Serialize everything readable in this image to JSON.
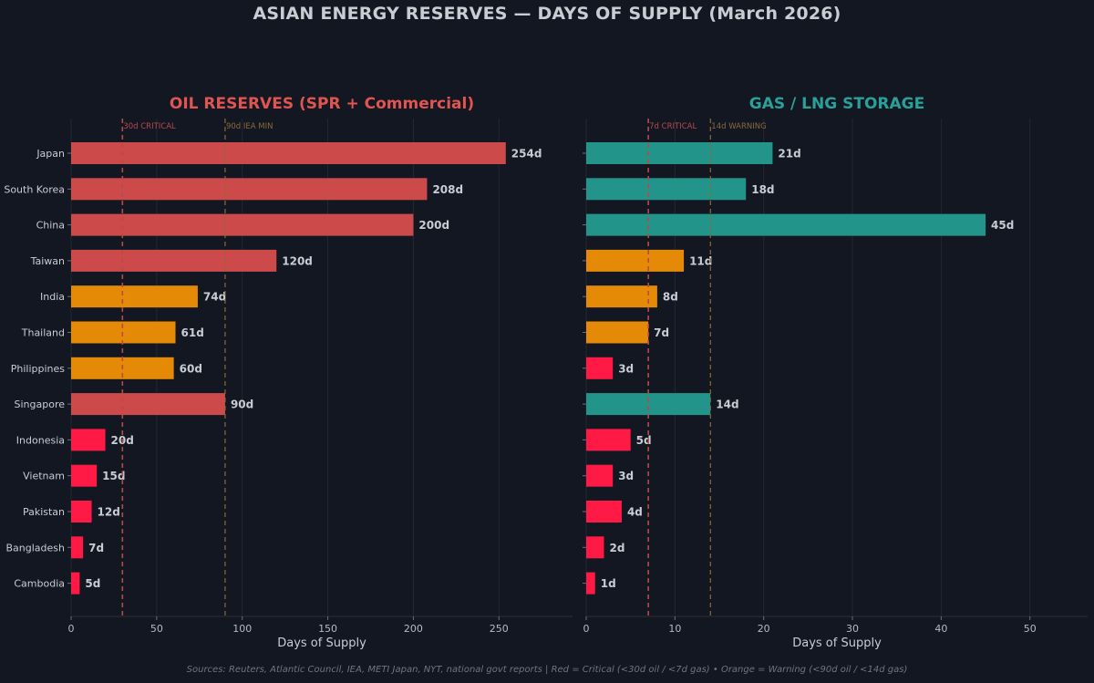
{
  "title": "ASIAN ENERGY RESERVES — DAYS OF SUPPLY (March 2026)",
  "footer": "Sources: Reuters, Atlantic Council, IEA, METI Japan, NYT, national govt reports  |  Red = Critical (<30d oil / <7d gas)  •  Orange = Warning (<90d oil / <14d gas)",
  "colors": {
    "background": "#131722",
    "oil_title": "#e05550",
    "gas_title": "#2aa198",
    "critical_line": "#b84a4a",
    "warning_line": "#8a6a3a",
    "text": "#c9ccd3"
  },
  "chart_data": [
    {
      "type": "bar",
      "orientation": "horizontal",
      "title": "OIL RESERVES (SPR + Commercial)",
      "xlabel": "Days of Supply",
      "ylabel": "",
      "xlim": [
        0,
        293
      ],
      "xticks": [
        0,
        50,
        100,
        150,
        200,
        250
      ],
      "grid": true,
      "categories": [
        "Japan",
        "South Korea",
        "China",
        "Taiwan",
        "India",
        "Thailand",
        "Philippines",
        "Singapore",
        "Indonesia",
        "Vietnam",
        "Pakistan",
        "Bangladesh",
        "Cambodia"
      ],
      "values": [
        254,
        208,
        200,
        120,
        74,
        61,
        60,
        90,
        20,
        15,
        12,
        7,
        5
      ],
      "value_labels": [
        "254d",
        "208d",
        "200d",
        "120d",
        "74d",
        "61d",
        "60d",
        "90d",
        "20d",
        "15d",
        "12d",
        "7d",
        "5d"
      ],
      "bar_colors": [
        "#cd4a4b",
        "#cd4a4b",
        "#cd4a4b",
        "#cd4a4b",
        "#e58a06",
        "#e58a06",
        "#e58a06",
        "#cd4a4b",
        "#ff1a46",
        "#ff1a46",
        "#ff1a46",
        "#ff1a46",
        "#ff1a46"
      ],
      "reference_lines": [
        {
          "value": 30,
          "label": "30d CRITICAL",
          "color": "#b84a4a"
        },
        {
          "value": 90,
          "label": "90d IEA MIN",
          "color": "#8a6a3a"
        }
      ]
    },
    {
      "type": "bar",
      "orientation": "horizontal",
      "title": "GAS / LNG STORAGE",
      "xlabel": "Days of Supply",
      "ylabel": "",
      "xlim": [
        0,
        56.5
      ],
      "xticks": [
        0,
        10,
        20,
        30,
        40,
        50
      ],
      "grid": true,
      "categories": [
        "Japan",
        "South Korea",
        "China",
        "Taiwan",
        "India",
        "Thailand",
        "Philippines",
        "Singapore",
        "Indonesia",
        "Vietnam",
        "Pakistan",
        "Bangladesh",
        "Cambodia"
      ],
      "values": [
        21,
        18,
        45,
        11,
        8,
        7,
        3,
        14,
        5,
        3,
        4,
        2,
        1
      ],
      "value_labels": [
        "21d",
        "18d",
        "45d",
        "11d",
        "8d",
        "7d",
        "3d",
        "14d",
        "5d",
        "3d",
        "4d",
        "2d",
        "1d"
      ],
      "bar_colors": [
        "#23948a",
        "#23948a",
        "#23948a",
        "#e58a06",
        "#e58a06",
        "#e58a06",
        "#ff1a46",
        "#23948a",
        "#ff1a46",
        "#ff1a46",
        "#ff1a46",
        "#ff1a46",
        "#ff1a46"
      ],
      "reference_lines": [
        {
          "value": 7,
          "label": "7d CRITICAL",
          "color": "#b84a4a"
        },
        {
          "value": 14,
          "label": "14d WARNING",
          "color": "#8a6a3a"
        }
      ]
    }
  ]
}
